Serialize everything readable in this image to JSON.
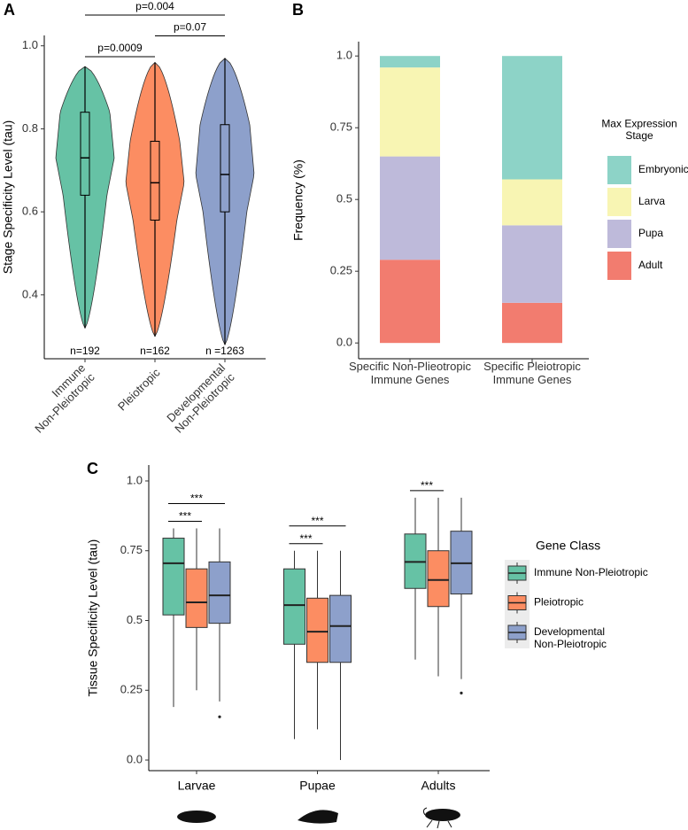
{
  "chart_data": [
    {
      "type": "violin",
      "panel": "A",
      "ylabel": "Stage Specificity Level (tau)",
      "categories": [
        "Immune\nNon-Pleiotropic",
        "Pleiotropic",
        "Developmental\nNon-Pleiotropic"
      ],
      "colors": [
        "#66c2a5",
        "#fc8d62",
        "#8da0cb"
      ],
      "values": [
        [
          0.32,
          0.64,
          0.73,
          0.84,
          0.95
        ],
        [
          0.3,
          0.58,
          0.67,
          0.77,
          0.96
        ],
        [
          0.28,
          0.6,
          0.69,
          0.81,
          0.97
        ]
      ],
      "counts": [
        "n=192",
        "n=162",
        "n =1263"
      ],
      "annotations": [
        {
          "text": "p=0.0009",
          "pair": [
            0,
            1
          ]
        },
        {
          "text": "p=0.07",
          "pair": [
            1,
            2
          ]
        },
        {
          "text": "p=0.004",
          "pair": [
            0,
            2
          ]
        }
      ],
      "ylim": [
        0.246,
        1.025
      ],
      "yticks": [
        0.4,
        0.6,
        0.8,
        {
          "value": 1.0,
          "label": "1.0"
        }
      ]
    },
    {
      "type": "stacked_bar",
      "panel": "B",
      "ylabel": "Frequency (%)",
      "categories": [
        "Specific Non-Plieotropic\nImmune Genes",
        "Specific Pleiotropic\nImmune Genes"
      ],
      "legend_title": "Max Expression\nStage",
      "series": [
        {
          "name": "Adult",
          "color": "#f27c6f",
          "values": [
            0.29,
            0.14
          ]
        },
        {
          "name": "Pupa",
          "color": "#bebada",
          "values": [
            0.36,
            0.27
          ]
        },
        {
          "name": "Larva",
          "color": "#f8f5b3",
          "values": [
            0.31,
            0.16
          ]
        },
        {
          "name": "Embryonic",
          "color": "#8dd3c7",
          "values": [
            0.04,
            0.43
          ]
        }
      ],
      "ylim": [
        -0.055,
        1.05
      ],
      "yticks": [
        {
          "value": 0,
          "label": "0.0"
        },
        0.25,
        0.5,
        0.75,
        {
          "value": 1.0,
          "label": "1.0"
        }
      ]
    },
    {
      "type": "grouped_box",
      "panel": "C",
      "ylabel": "Tissue Specificity Level (tau)",
      "categories": [
        "Larvae",
        "Pupae",
        "Adults"
      ],
      "legend_title": "Gene Class",
      "series": [
        {
          "name": "Immune Non-Pleiotropic",
          "color": "#66c2a5",
          "values": [
            [
              0.19,
              0.52,
              0.705,
              0.795,
              0.83
            ],
            [
              0.075,
              0.415,
              0.555,
              0.685,
              0.75
            ],
            [
              0.36,
              0.615,
              0.71,
              0.81,
              0.94
            ]
          ],
          "outliers": [
            [],
            [],
            []
          ]
        },
        {
          "name": "Pleiotropic",
          "color": "#fc8d62",
          "values": [
            [
              0.25,
              0.475,
              0.565,
              0.685,
              0.83
            ],
            [
              0.11,
              0.35,
              0.46,
              0.58,
              0.75
            ],
            [
              0.3,
              0.55,
              0.645,
              0.75,
              0.94
            ]
          ],
          "outliers": [
            [],
            [],
            []
          ]
        },
        {
          "name": "Developmental\nNon-Pleiotropic",
          "color": "#8da0cb",
          "values": [
            [
              0.21,
              0.49,
              0.59,
              0.71,
              0.83
            ],
            [
              0.0,
              0.35,
              0.48,
              0.59,
              0.75
            ],
            [
              0.29,
              0.595,
              0.705,
              0.82,
              0.94
            ]
          ],
          "outliers": [
            [
              0.155
            ],
            [],
            [
              0.24
            ]
          ]
        }
      ],
      "annotations": [
        {
          "text": "***",
          "category": 0,
          "pair": [
            0,
            1
          ]
        },
        {
          "text": "***",
          "category": 0,
          "pair": [
            0,
            2
          ]
        },
        {
          "text": "***",
          "category": 1,
          "pair": [
            0,
            1
          ]
        },
        {
          "text": "***",
          "category": 1,
          "pair": [
            0,
            2
          ]
        },
        {
          "text": "***",
          "category": 2,
          "pair": [
            0,
            1
          ]
        }
      ],
      "ylim": [
        -0.038,
        1.057
      ],
      "yticks": [
        {
          "value": 0,
          "label": "0.0"
        },
        0.25,
        0.5,
        0.75,
        {
          "value": 1.0,
          "label": "1.0"
        }
      ]
    }
  ]
}
